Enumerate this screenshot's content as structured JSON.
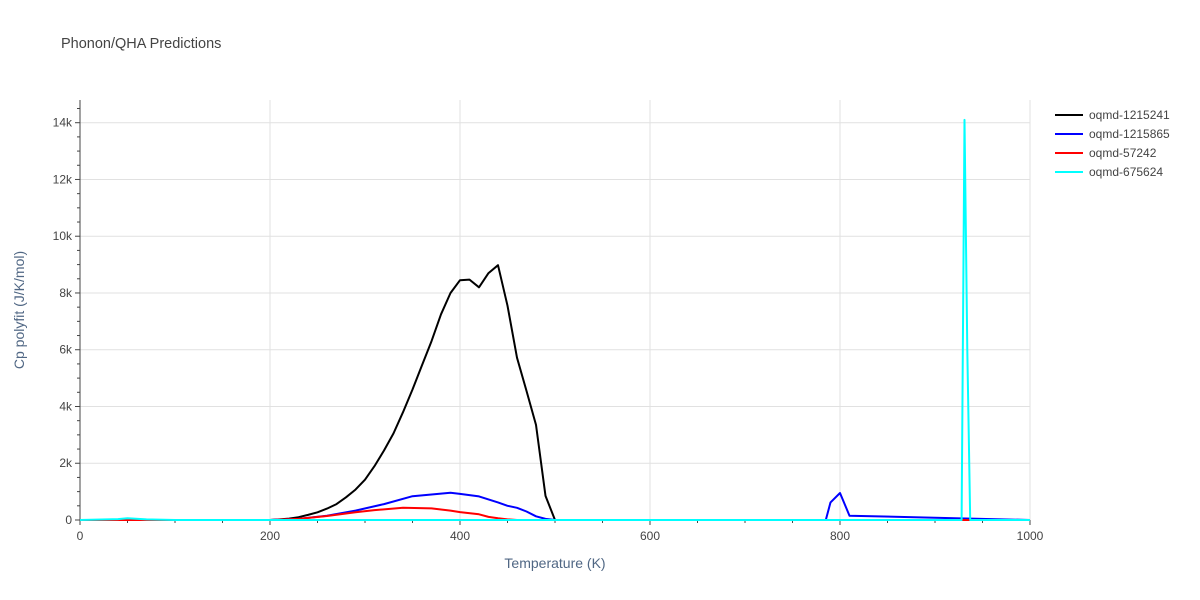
{
  "chart_data": {
    "type": "line",
    "title": "Phonon/QHA Predictions",
    "xlabel": "Temperature (K)",
    "ylabel": "Cp polyfit (J/K/mol)",
    "xlim": [
      0,
      1000
    ],
    "ylim": [
      0,
      14800
    ],
    "x_ticks": [
      0,
      200,
      400,
      600,
      800,
      1000
    ],
    "x_tick_labels": [
      "0",
      "200",
      "400",
      "600",
      "800",
      "1000"
    ],
    "y_ticks": [
      0,
      2000,
      4000,
      6000,
      8000,
      10000,
      12000,
      14000
    ],
    "y_tick_labels": [
      "0",
      "2k",
      "4k",
      "6k",
      "8k",
      "10k",
      "12k",
      "14k"
    ],
    "grid": true,
    "legend_position": "top-right",
    "series": [
      {
        "name": "oqmd-1215241",
        "color": "#000000",
        "x": [
          0,
          200,
          210,
          220,
          230,
          240,
          250,
          260,
          270,
          280,
          290,
          300,
          310,
          320,
          330,
          340,
          350,
          360,
          370,
          380,
          390,
          400,
          410,
          420,
          430,
          440,
          450,
          460,
          470,
          480,
          490,
          500
        ],
        "y": [
          0,
          0,
          20,
          50,
          100,
          180,
          270,
          400,
          560,
          800,
          1070,
          1420,
          1900,
          2450,
          3050,
          3800,
          4600,
          5450,
          6300,
          7250,
          8000,
          8450,
          8470,
          8200,
          8700,
          8980,
          7550,
          5720,
          4550,
          3350,
          850,
          0
        ]
      },
      {
        "name": "oqmd-1215865",
        "color": "#0000ff",
        "x": [
          0,
          200,
          230,
          260,
          290,
          320,
          350,
          370,
          390,
          400,
          420,
          440,
          450,
          460,
          470,
          480,
          490,
          500,
          785,
          790,
          800,
          810,
          1000
        ],
        "y": [
          0,
          0,
          40,
          150,
          330,
          560,
          840,
          900,
          960,
          920,
          830,
          620,
          500,
          430,
          300,
          130,
          40,
          0,
          0,
          620,
          950,
          150,
          0
        ]
      },
      {
        "name": "oqmd-57242",
        "color": "#ff0000",
        "x": [
          0,
          200,
          230,
          260,
          290,
          310,
          340,
          370,
          390,
          400,
          420,
          430,
          440,
          450,
          460,
          1000
        ],
        "y": [
          0,
          0,
          40,
          140,
          270,
          350,
          430,
          410,
          330,
          280,
          200,
          110,
          60,
          20,
          0,
          0
        ]
      },
      {
        "name": "oqmd-675624",
        "color": "#00ffff",
        "x": [
          0,
          40,
          50,
          70,
          100,
          900,
          905,
          928,
          931,
          934,
          937,
          1000
        ],
        "y": [
          0,
          30,
          60,
          20,
          0,
          0,
          0,
          0,
          14100,
          6000,
          0,
          0
        ]
      }
    ]
  }
}
